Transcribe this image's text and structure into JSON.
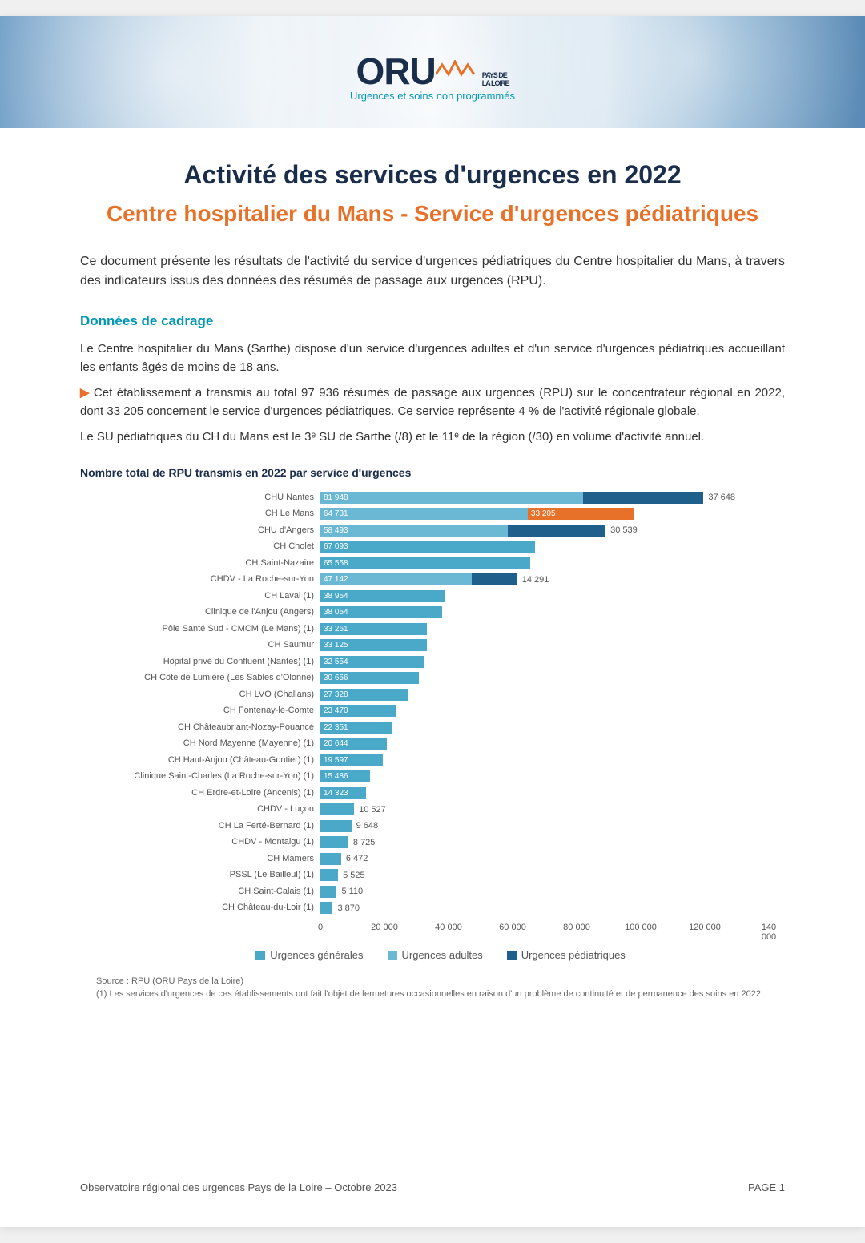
{
  "logo": {
    "text": "ORU",
    "region_line1": "PAYS DE",
    "region_line2": "LA LOIRE",
    "tagline": "Urgences et soins non programmés",
    "zigzag_color": "#e8712a",
    "logo_color": "#1a2d4a",
    "tagline_color": "#0097b2"
  },
  "title": "Activité des services d'urgences en 2022",
  "subtitle": "Centre hospitalier du Mans - Service d'urgences pédiatriques",
  "intro": "Ce document présente les résultats de l'activité du service d'urgences pédiatriques du Centre hospitalier du Mans, à travers des indicateurs issus des données des résumés de passage aux urgences (RPU).",
  "section_heading": "Données de cadrage",
  "para1": "Le Centre hospitalier du Mans (Sarthe) dispose d'un service d'urgences adultes et d'un service d'urgences pédiatriques accueillant les enfants âgés de moins de 18 ans.",
  "para2": "Cet établissement a transmis au total 97 936 résumés de passage aux urgences (RPU) sur le concentrateur régional en 2022, dont 33 205 concernent le service d'urgences pédiatriques. Ce service représente 4 % de l'activité régionale globale.",
  "para3": "Le SU pédiatriques du CH du Mans est le 3ᵉ SU de Sarthe (/8) et le 11ᵉ de la région (/30) en volume d'activité annuel.",
  "chart": {
    "title": "Nombre total de RPU transmis en 2022 par service d'urgences",
    "xmax": 140000,
    "xticks": [
      0,
      20000,
      40000,
      60000,
      80000,
      100000,
      120000,
      140000
    ],
    "xtick_labels": [
      "0",
      "20 000",
      "40 000",
      "60 000",
      "80 000",
      "100 000",
      "120 000",
      "140 000"
    ],
    "colors": {
      "generales": "#4aa8c9",
      "adultes": "#6bb8d4",
      "pediatriques": "#1e5f8c",
      "highlight": "#e8712a"
    },
    "rows": [
      {
        "label": "CHU Nantes",
        "segments": [
          {
            "type": "adultes",
            "value": 81948,
            "text": "81 948"
          },
          {
            "type": "pediatriques",
            "value": 37648,
            "text": "37 648",
            "text_outside": true
          }
        ]
      },
      {
        "label": "CH Le Mans",
        "segments": [
          {
            "type": "adultes",
            "value": 64731,
            "text": "64 731"
          },
          {
            "type": "highlight",
            "value": 33205,
            "text": "33 205"
          }
        ]
      },
      {
        "label": "CHU d'Angers",
        "segments": [
          {
            "type": "adultes",
            "value": 58493,
            "text": "58 493"
          },
          {
            "type": "pediatriques",
            "value": 30539,
            "text": "30 539",
            "text_outside": true
          }
        ]
      },
      {
        "label": "CH Cholet",
        "segments": [
          {
            "type": "generales",
            "value": 67093,
            "text": "67 093"
          }
        ]
      },
      {
        "label": "CH Saint-Nazaire",
        "segments": [
          {
            "type": "generales",
            "value": 65558,
            "text": "65 558"
          }
        ]
      },
      {
        "label": "CHDV - La Roche-sur-Yon",
        "segments": [
          {
            "type": "adultes",
            "value": 47142,
            "text": "47 142"
          },
          {
            "type": "pediatriques",
            "value": 14291,
            "text": "14 291",
            "text_outside": true
          }
        ]
      },
      {
        "label": "CH Laval (1)",
        "segments": [
          {
            "type": "generales",
            "value": 38954,
            "text": "38 954"
          }
        ]
      },
      {
        "label": "Clinique de l'Anjou (Angers)",
        "segments": [
          {
            "type": "generales",
            "value": 38054,
            "text": "38 054"
          }
        ]
      },
      {
        "label": "Pôle Santé Sud - CMCM (Le Mans) (1)",
        "segments": [
          {
            "type": "generales",
            "value": 33261,
            "text": "33 261"
          }
        ]
      },
      {
        "label": "CH Saumur",
        "segments": [
          {
            "type": "generales",
            "value": 33125,
            "text": "33 125"
          }
        ]
      },
      {
        "label": "Hôpital privé du Confluent (Nantes) (1)",
        "segments": [
          {
            "type": "generales",
            "value": 32554,
            "text": "32 554"
          }
        ]
      },
      {
        "label": "CH Côte de Lumière (Les Sables d'Olonne)",
        "segments": [
          {
            "type": "generales",
            "value": 30656,
            "text": "30 656"
          }
        ]
      },
      {
        "label": "CH LVO (Challans)",
        "segments": [
          {
            "type": "generales",
            "value": 27328,
            "text": "27 328"
          }
        ]
      },
      {
        "label": "CH Fontenay-le-Comte",
        "segments": [
          {
            "type": "generales",
            "value": 23470,
            "text": "23 470"
          }
        ]
      },
      {
        "label": "CH Châteaubriant-Nozay-Pouancé",
        "segments": [
          {
            "type": "generales",
            "value": 22351,
            "text": "22 351"
          }
        ]
      },
      {
        "label": "CH Nord Mayenne (Mayenne) (1)",
        "segments": [
          {
            "type": "generales",
            "value": 20644,
            "text": "20 644"
          }
        ]
      },
      {
        "label": "CH Haut-Anjou (Château-Gontier) (1)",
        "segments": [
          {
            "type": "generales",
            "value": 19597,
            "text": "19 597"
          }
        ]
      },
      {
        "label": "Clinique Saint-Charles (La Roche-sur-Yon) (1)",
        "segments": [
          {
            "type": "generales",
            "value": 15486,
            "text": "15 486"
          }
        ]
      },
      {
        "label": "CH Erdre-et-Loire (Ancenis) (1)",
        "segments": [
          {
            "type": "generales",
            "value": 14323,
            "text": "14 323"
          }
        ]
      },
      {
        "label": "CHDV - Luçon",
        "segments": [
          {
            "type": "generales",
            "value": 10527,
            "text": "10 527",
            "text_outside": true
          }
        ]
      },
      {
        "label": "CH La Ferté-Bernard (1)",
        "segments": [
          {
            "type": "generales",
            "value": 9648,
            "text": "9 648",
            "text_outside": true
          }
        ]
      },
      {
        "label": "CHDV - Montaigu (1)",
        "segments": [
          {
            "type": "generales",
            "value": 8725,
            "text": "8 725",
            "text_outside": true
          }
        ]
      },
      {
        "label": "CH Mamers",
        "segments": [
          {
            "type": "generales",
            "value": 6472,
            "text": "6 472",
            "text_outside": true
          }
        ]
      },
      {
        "label": "PSSL (Le Bailleul) (1)",
        "segments": [
          {
            "type": "generales",
            "value": 5525,
            "text": "5 525",
            "text_outside": true
          }
        ]
      },
      {
        "label": "CH Saint-Calais (1)",
        "segments": [
          {
            "type": "generales",
            "value": 5110,
            "text": "5 110",
            "text_outside": true
          }
        ]
      },
      {
        "label": "CH Château-du-Loir (1)",
        "segments": [
          {
            "type": "generales",
            "value": 3870,
            "text": "3 870",
            "text_outside": true
          }
        ]
      }
    ],
    "legend": [
      {
        "label": "Urgences générales",
        "color": "#4aa8c9"
      },
      {
        "label": "Urgences adultes",
        "color": "#6bb8d4"
      },
      {
        "label": "Urgences pédiatriques",
        "color": "#1e5f8c"
      }
    ],
    "source": "Source : RPU (ORU Pays de la Loire)",
    "footnote": "(1) Les services d'urgences de ces établissements ont fait l'objet de fermetures occasionnelles en raison d'un problème de continuité et de permanence des soins en 2022."
  },
  "footer": {
    "left": "Observatoire régional des urgences Pays de la Loire – Octobre 2023",
    "right": "PAGE 1"
  }
}
